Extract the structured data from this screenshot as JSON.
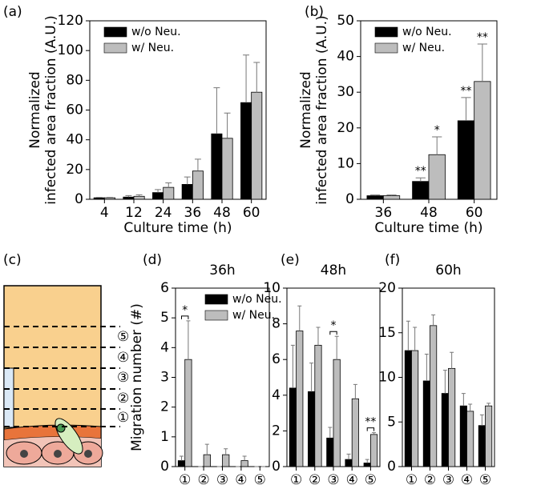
{
  "chart_data": [
    {
      "type": "bar",
      "panel": "(a)",
      "xlabel": "Culture time (h)",
      "ylabel": [
        "Normalized",
        "infected area fraction (A.U.)"
      ],
      "categories": [
        "4",
        "12",
        "24",
        "36",
        "48",
        "60"
      ],
      "series": [
        {
          "name": "w/o Neu.",
          "color": "#000000",
          "values": [
            1,
            1.5,
            4.5,
            10,
            44,
            65
          ],
          "errors": [
            0.3,
            1,
            2,
            5,
            31,
            32
          ]
        },
        {
          "name": "w/ Neu.",
          "color": "#bdbdbd",
          "values": [
            1,
            2,
            8,
            19,
            41,
            72
          ],
          "errors": [
            0.3,
            1,
            3,
            8,
            17,
            20
          ]
        }
      ],
      "ylim": [
        0,
        120
      ],
      "yticks": [
        0,
        20,
        40,
        60,
        80,
        100,
        120
      ],
      "legend": "upper left"
    },
    {
      "type": "bar",
      "panel": "(b)",
      "xlabel": "Culture time (h)",
      "ylabel": [
        "Normalized",
        "infected area fraction (A.U.)"
      ],
      "categories": [
        "36",
        "48",
        "60"
      ],
      "series": [
        {
          "name": "w/o Neu.",
          "color": "#000000",
          "values": [
            1,
            5,
            22
          ],
          "errors": [
            0.2,
            1,
            6.5
          ],
          "significance": [
            null,
            "**",
            "**"
          ]
        },
        {
          "name": "w/ Neu.",
          "color": "#bdbdbd",
          "values": [
            1,
            12.5,
            33
          ],
          "errors": [
            0.2,
            5,
            10.5
          ],
          "significance": [
            null,
            "*",
            "**"
          ]
        }
      ],
      "ylim": [
        0,
        50
      ],
      "yticks": [
        0,
        10,
        20,
        30,
        40,
        50
      ],
      "legend": "upper left"
    },
    {
      "type": "bar",
      "panel": "(d)",
      "title": "36h",
      "ylabel": [
        "Migration number (#)"
      ],
      "categories": [
        "①",
        "②",
        "③",
        "④",
        "⑤"
      ],
      "series": [
        {
          "name": "w/o Neu.",
          "color": "#000000",
          "values": [
            0.2,
            0,
            0,
            0,
            0
          ],
          "errors": [
            0.15,
            0,
            0,
            0,
            0
          ]
        },
        {
          "name": "w/ Neu.",
          "color": "#bdbdbd",
          "values": [
            3.6,
            0.4,
            0.4,
            0.2,
            0
          ],
          "errors": [
            1.3,
            0.35,
            0.2,
            0.15,
            0
          ]
        }
      ],
      "brackets": [
        "*",
        null,
        null,
        null,
        null
      ],
      "ylim": [
        0,
        6
      ],
      "yticks": [
        0,
        1,
        2,
        3,
        4,
        5,
        6
      ],
      "legend": "upper right"
    },
    {
      "type": "bar",
      "panel": "(e)",
      "title": "48h",
      "categories": [
        "①",
        "②",
        "③",
        "④",
        "⑤"
      ],
      "series": [
        {
          "name": "w/o Neu.",
          "color": "#000000",
          "values": [
            4.4,
            4.2,
            1.6,
            0.4,
            0.2
          ],
          "errors": [
            2.4,
            1.6,
            0.6,
            0.3,
            0.2
          ]
        },
        {
          "name": "w/ Neu.",
          "color": "#bdbdbd",
          "values": [
            7.6,
            6.8,
            6.0,
            3.8,
            1.8
          ],
          "errors": [
            1.4,
            1.0,
            1.3,
            0.8,
            0.1
          ]
        }
      ],
      "brackets": [
        null,
        null,
        "*",
        null,
        "**"
      ],
      "ylim": [
        0,
        10
      ],
      "yticks": [
        0,
        2,
        4,
        6,
        8,
        10
      ]
    },
    {
      "type": "bar",
      "panel": "(f)",
      "title": "60h",
      "categories": [
        "①",
        "②",
        "③",
        "④",
        "⑤"
      ],
      "series": [
        {
          "name": "w/o Neu.",
          "color": "#000000",
          "values": [
            13,
            9.6,
            8.2,
            6.8,
            4.6
          ],
          "errors": [
            3.3,
            3.0,
            2.6,
            1.4,
            1.2
          ]
        },
        {
          "name": "w/ Neu.",
          "color": "#bdbdbd",
          "values": [
            13,
            15.8,
            11,
            6.2,
            6.8
          ],
          "errors": [
            2.6,
            1.2,
            1.8,
            0.8,
            0.3
          ]
        }
      ],
      "ylim": [
        0,
        20
      ],
      "yticks": [
        0,
        5,
        10,
        15,
        20
      ]
    }
  ],
  "diagram": {
    "panel": "(c)",
    "zones": [
      "⑤",
      "④",
      "③",
      "②",
      "①"
    ]
  }
}
